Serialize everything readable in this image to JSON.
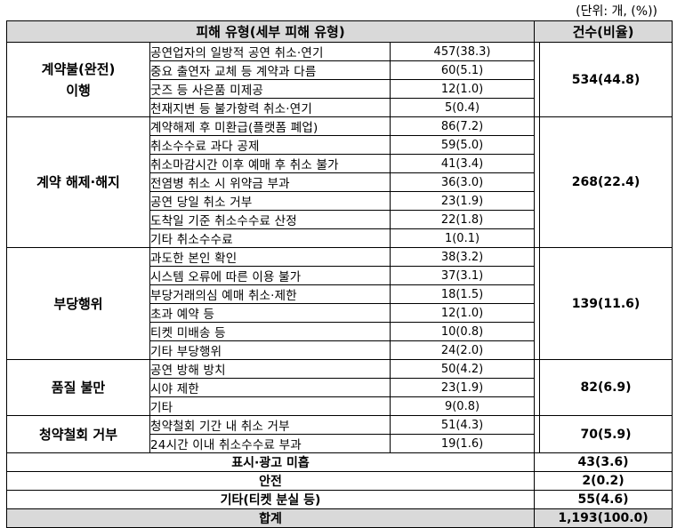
{
  "unit_note": "(단위: 개, (%))",
  "header": {
    "type": "피해 유형(세부 피해 유형)",
    "count": "건수(비율)"
  },
  "groups": [
    {
      "name_line1": "계약불(완전)",
      "name_line2": "이행",
      "total": "534(44.8)",
      "items": [
        {
          "label": "공연업자의 일방적 공연 취소·연기",
          "count": "457(38.3)"
        },
        {
          "label": "중요 출연자 교체 등 계약과 다름",
          "count": "60(5.1)"
        },
        {
          "label": "굿즈 등 사은품 미제공",
          "count": "12(1.0)"
        },
        {
          "label": "천재지변 등 불가항력 취소·연기",
          "count": "5(0.4)"
        }
      ]
    },
    {
      "name_line1": "계약 해제·해지",
      "name_line2": "",
      "total": "268(22.4)",
      "items": [
        {
          "label": "계약해제 후 미환급(플랫폼 폐업)",
          "count": "86(7.2)"
        },
        {
          "label": "취소수수료 과다 공제",
          "count": "59(5.0)"
        },
        {
          "label": "취소마감시간 이후 예매 후 취소 불가",
          "count": "41(3.4)"
        },
        {
          "label": "전염병 취소 시 위약금 부과",
          "count": "36(3.0)"
        },
        {
          "label": "공연 당일 취소 거부",
          "count": "23(1.9)"
        },
        {
          "label": "도착일 기준 취소수수료 산정",
          "count": "22(1.8)"
        },
        {
          "label": "기타 취소수수료",
          "count": "1(0.1)"
        }
      ]
    },
    {
      "name_line1": "부당행위",
      "name_line2": "",
      "total": "139(11.6)",
      "items": [
        {
          "label": "과도한 본인 확인",
          "count": "38(3.2)"
        },
        {
          "label": "시스템 오류에 따른 이용 불가",
          "count": "37(3.1)"
        },
        {
          "label": "부당거래의심 예매 취소·제한",
          "count": "18(1.5)"
        },
        {
          "label": "초과 예약 등",
          "count": "12(1.0)"
        },
        {
          "label": "티켓 미배송 등",
          "count": "10(0.8)"
        },
        {
          "label": "기타 부당행위",
          "count": "24(2.0)"
        }
      ]
    },
    {
      "name_line1": "품질 불만",
      "name_line2": "",
      "total": "82(6.9)",
      "items": [
        {
          "label": "공연 방해 방치",
          "count": "50(4.2)"
        },
        {
          "label": "시야 제한",
          "count": "23(1.9)"
        },
        {
          "label": "기타",
          "count": "9(0.8)"
        }
      ]
    },
    {
      "name_line1": "청약철회 거부",
      "name_line2": "",
      "total": "70(5.9)",
      "items": [
        {
          "label": "청약철회 기간 내 취소 거부",
          "count": "51(4.3)"
        },
        {
          "label": "24시간 이내 취소수수료 부과",
          "count": "19(1.6)"
        }
      ]
    }
  ],
  "singles": [
    {
      "label": "표시·광고 미흡",
      "total": "43(3.6)"
    },
    {
      "label": "안전",
      "total": "2(0.2)"
    },
    {
      "label": "기타(티켓 분실 등)",
      "total": "55(4.6)"
    }
  ],
  "sum": {
    "label": "합계",
    "total": "1,193(100.0)"
  }
}
